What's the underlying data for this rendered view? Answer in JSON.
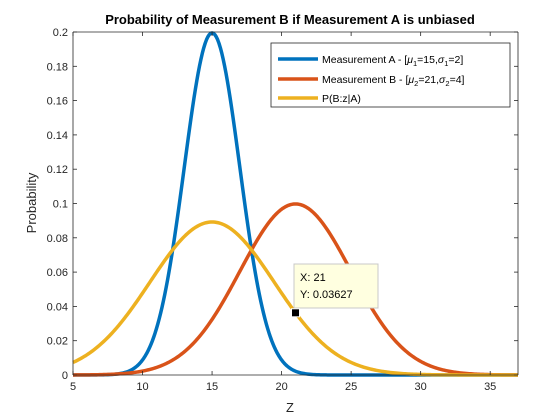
{
  "chart_data": {
    "type": "line",
    "title": "Probability of Measurement B if Measurement A is unbiased",
    "xlabel": "Z",
    "ylabel": "Probability",
    "xlim": [
      5,
      37
    ],
    "ylim": [
      0,
      0.2
    ],
    "x_ticks": [
      "5",
      "10",
      "15",
      "20",
      "25",
      "30",
      "35"
    ],
    "y_ticks": [
      "0",
      "0.02",
      "0.04",
      "0.06",
      "0.08",
      "0.1",
      "0.12",
      "0.14",
      "0.16",
      "0.18",
      "0.2"
    ],
    "grid": false,
    "legend_position": "top-right",
    "series": [
      {
        "legend_text": "Measurement A - [",
        "mu_label": "μ",
        "mu_sub": "1",
        "mu_val": "=15,",
        "sigma_label": "σ",
        "sigma_sub": "1",
        "sigma_val": "=2]",
        "color": "#0072BD",
        "mean": 15,
        "sd": 2
      },
      {
        "legend_text": "Measurement B - [",
        "mu_label": "μ",
        "mu_sub": "2",
        "mu_val": "=21,",
        "sigma_label": "σ",
        "sigma_sub": "2",
        "sigma_val": "=4]",
        "color": "#D95319",
        "mean": 21,
        "sd": 4
      },
      {
        "name": "P(B:z|A)",
        "color": "#EDB120",
        "mean": 15,
        "sd": 4.4721
      }
    ],
    "datatip": {
      "x": 21,
      "y": 0.03627,
      "x_label": "X: 21",
      "y_label": "Y: 0.03627"
    }
  }
}
